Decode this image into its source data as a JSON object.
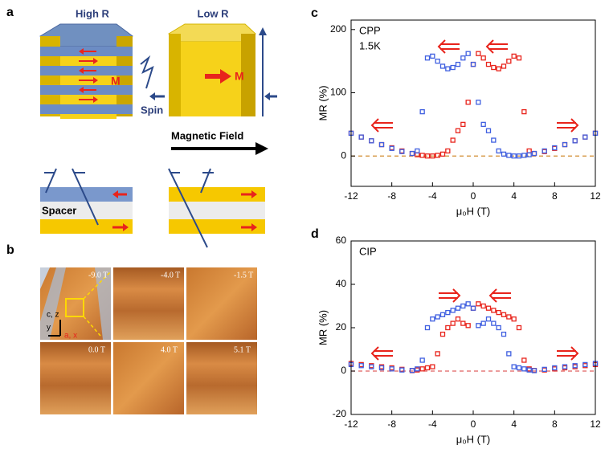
{
  "panel_a": {
    "label": "a",
    "high_r": "High R",
    "low_r": "Low R",
    "m_left": "M",
    "m_right": "M",
    "spin": "Spin",
    "field": "Magnetic Field",
    "spacer": "Spacer"
  },
  "panel_b": {
    "label": "b",
    "images": [
      "-9.0 T",
      "-4.0 T",
      "-1.5 T",
      "0.0 T",
      "4.0 T",
      "5.1 T"
    ],
    "axes": [
      "c, z",
      "y",
      "a, x"
    ]
  },
  "chart_data": [
    {
      "type": "scatter",
      "panel": "c",
      "annotations": [
        "CPP",
        "1.5K"
      ],
      "xlabel": "μ₀H (T)",
      "ylabel": "MR (%)",
      "marker": "square",
      "x": [
        -12,
        -11,
        -10,
        -9,
        -8,
        -7,
        -6,
        -5.5,
        -5,
        -4.5,
        -4,
        -3.5,
        -3,
        -2.5,
        -2,
        -1.5,
        -1,
        -0.5,
        0,
        0.5,
        1,
        1.5,
        2,
        2.5,
        3,
        3.5,
        4,
        4.5,
        5,
        5.5,
        6,
        7,
        8,
        9,
        10,
        11,
        12
      ],
      "series": [
        {
          "color": "#e8241c",
          "values": [
            36,
            30,
            24,
            18,
            13,
            8,
            4,
            2,
            1,
            0,
            0,
            1,
            3,
            8,
            25,
            40,
            50,
            85,
            145,
            162,
            155,
            145,
            140,
            138,
            142,
            150,
            158,
            155,
            70,
            8,
            4,
            7,
            12,
            18,
            24,
            30,
            36
          ]
        },
        {
          "color": "#3f5fe0",
          "values": [
            36,
            30,
            24,
            18,
            12,
            7,
            4,
            8,
            70,
            155,
            158,
            150,
            142,
            138,
            140,
            145,
            155,
            162,
            145,
            85,
            50,
            40,
            25,
            8,
            3,
            1,
            0,
            0,
            1,
            2,
            4,
            8,
            13,
            18,
            24,
            30,
            36
          ]
        }
      ],
      "xlim": [
        -12,
        12
      ],
      "ylim": [
        -48,
        215
      ],
      "xticks": [
        -12,
        -8,
        -4,
        0,
        4,
        8,
        12
      ],
      "yticks": [
        0,
        100,
        200
      ],
      "reference_line": {
        "value": 0,
        "color": "#d08a2c",
        "style": "dashed"
      }
    },
    {
      "type": "scatter",
      "panel": "d",
      "annotations": [
        "CIP"
      ],
      "xlabel": "μ₀H (T)",
      "ylabel": "MR (%)",
      "marker": "square",
      "x": [
        -12,
        -11,
        -10,
        -9,
        -8,
        -7,
        -6,
        -5.5,
        -5,
        -4.5,
        -4,
        -3.5,
        -3,
        -2.5,
        -2,
        -1.5,
        -1,
        -0.5,
        0,
        0.5,
        1,
        1.5,
        2,
        2.5,
        3,
        3.5,
        4,
        4.5,
        5,
        5.5,
        6,
        7,
        8,
        9,
        10,
        11,
        12
      ],
      "series": [
        {
          "color": "#e8241c",
          "values": [
            3.5,
            3,
            2.5,
            2,
            1.5,
            0.8,
            0.2,
            0.5,
            1,
            1.5,
            2,
            8,
            17,
            20,
            22,
            24,
            22,
            21,
            29,
            31,
            30,
            29,
            28,
            27,
            26,
            25,
            24,
            20,
            5,
            1,
            0.3,
            0.5,
            1,
            1.5,
            2,
            2.5,
            3
          ]
        },
        {
          "color": "#3f5fe0",
          "values": [
            3,
            2.5,
            2,
            1.5,
            1,
            0.5,
            0.3,
            1,
            5,
            20,
            24,
            25,
            26,
            27,
            28,
            29,
            30,
            31,
            29,
            21,
            22,
            24,
            22,
            20,
            17,
            8,
            2,
            1.5,
            1,
            0.5,
            0.2,
            0.8,
            1.5,
            2,
            2.5,
            3,
            3.5
          ]
        }
      ],
      "xlim": [
        -12,
        12
      ],
      "ylim": [
        -20,
        60
      ],
      "xticks": [
        -12,
        -8,
        -4,
        0,
        4,
        8,
        12
      ],
      "yticks": [
        -20,
        0,
        20,
        40,
        60
      ],
      "reference_line": {
        "value": 0,
        "color": "#e06060",
        "style": "dashed"
      }
    }
  ]
}
